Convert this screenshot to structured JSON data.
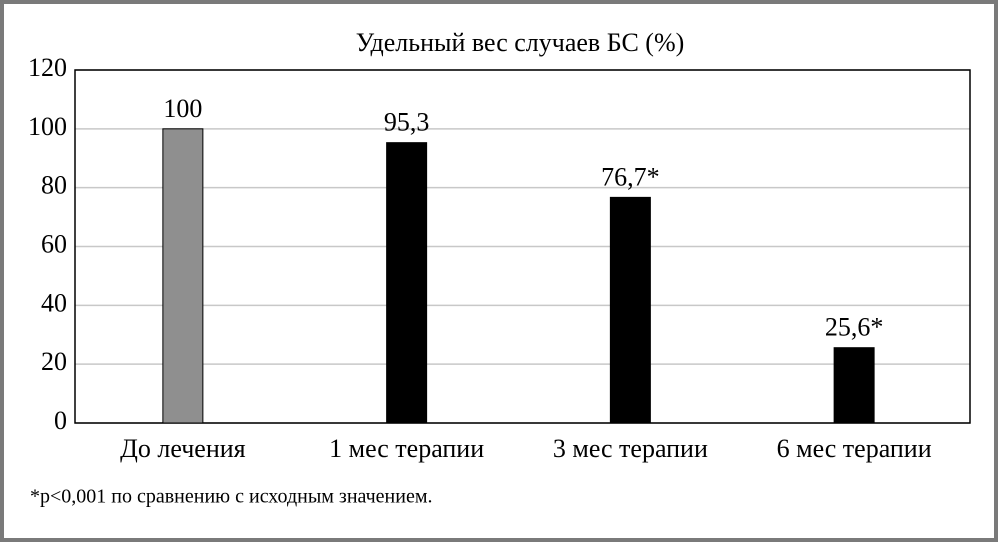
{
  "chart_data": {
    "type": "bar",
    "title": "Удельный вес случаев БС (%)",
    "categories": [
      "До лечения",
      "1 мес терапии",
      "3 мес терапии",
      "6 мес терапии"
    ],
    "values": [
      100,
      95.3,
      76.7,
      25.6
    ],
    "value_labels": [
      "100",
      "95,3",
      "76,7*",
      "25,6*"
    ],
    "colors": [
      "#8f8f8f",
      "#000000",
      "#000000",
      "#000000"
    ],
    "ylim": [
      0,
      120
    ],
    "yticks": [
      0,
      20,
      40,
      60,
      80,
      100,
      120
    ],
    "grid": true,
    "footnote": "*p<0,001 по сравнению с исходным значением."
  }
}
